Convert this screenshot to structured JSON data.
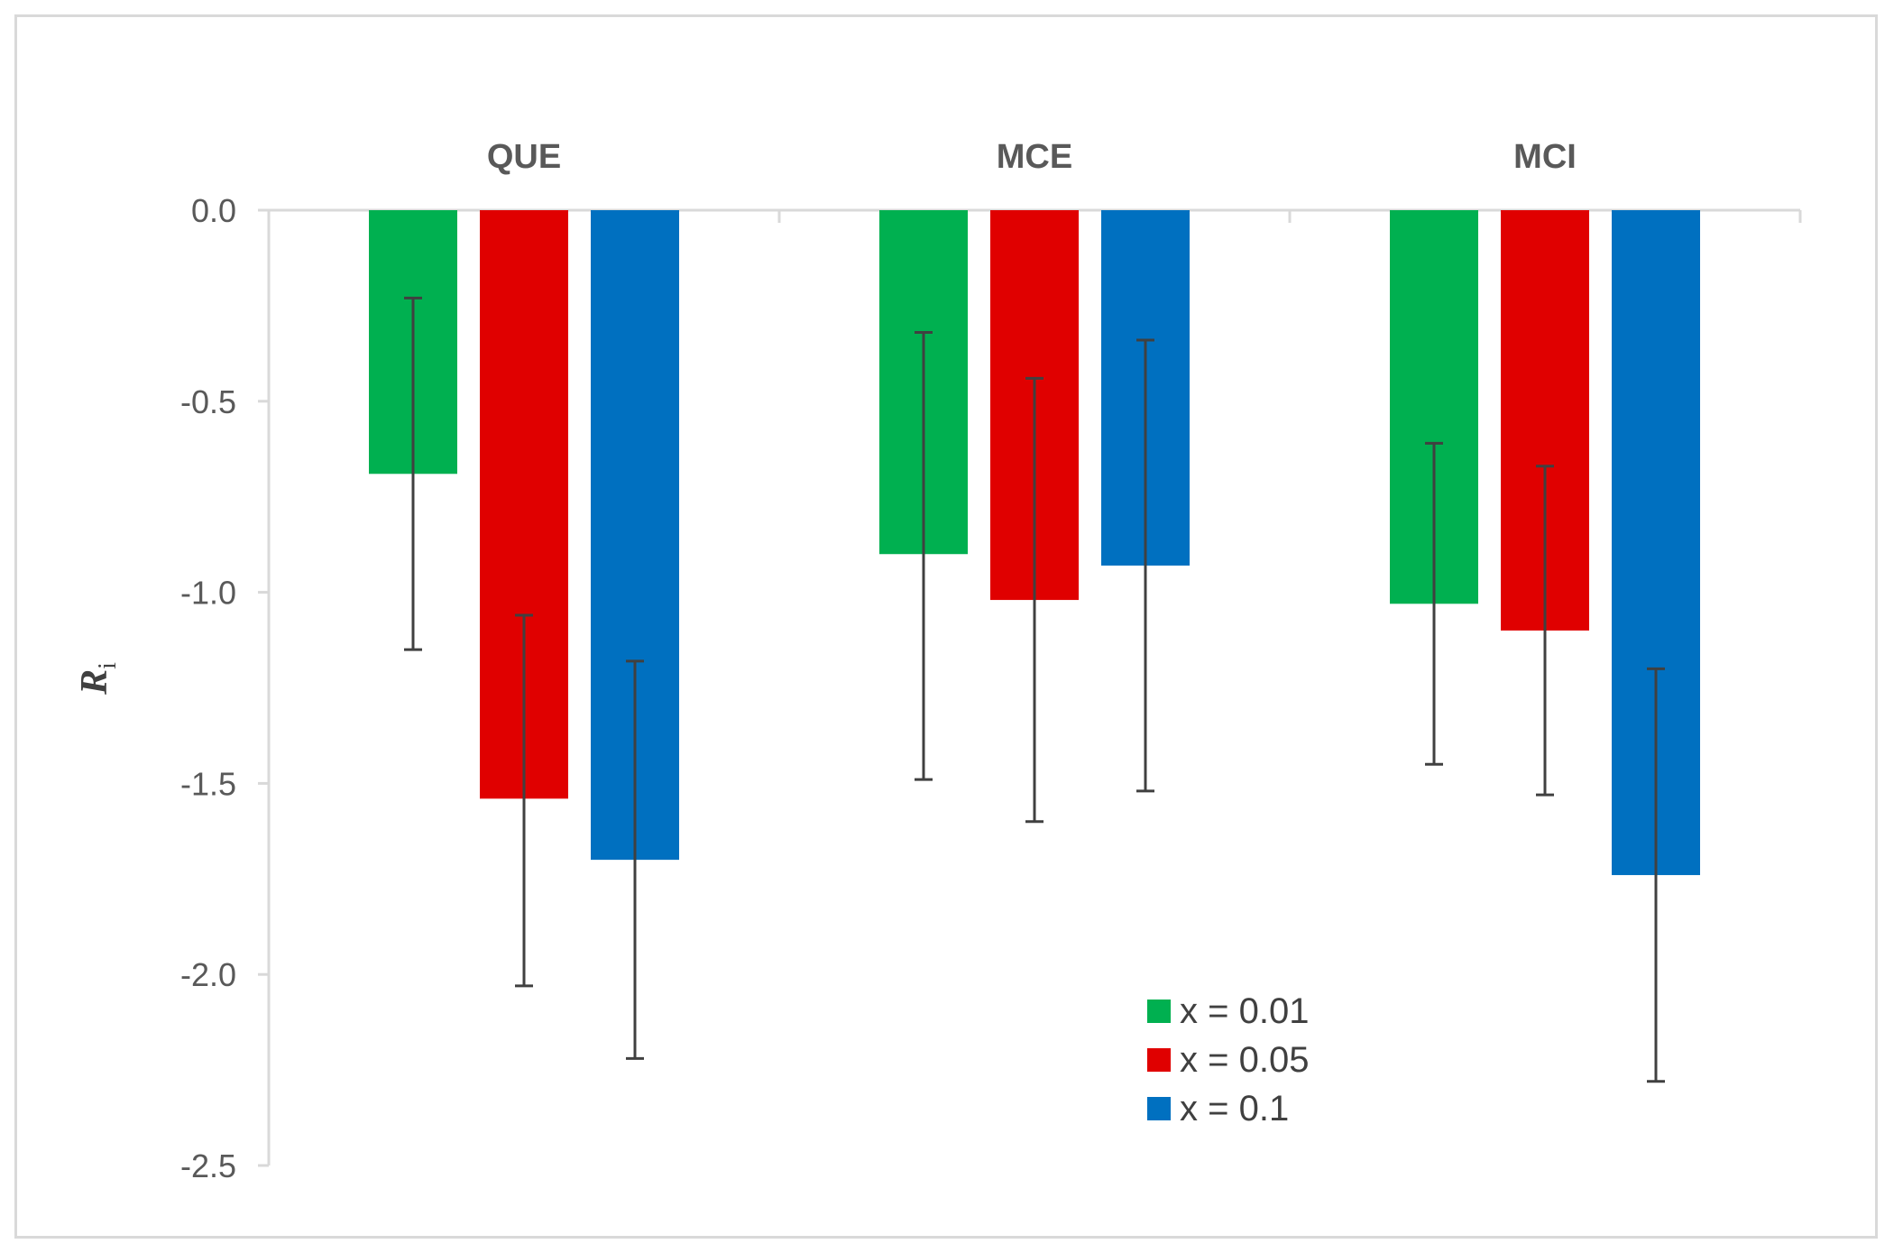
{
  "chart_data": {
    "type": "bar",
    "categories": [
      "QUE",
      "MCE",
      "MCI"
    ],
    "series": [
      {
        "name": "x = 0.01",
        "color": "#00b050",
        "values": [
          -0.69,
          -0.9,
          -1.03
        ],
        "error_low": [
          -1.15,
          -1.49,
          -1.45
        ],
        "error_high": [
          -0.23,
          -0.32,
          -0.61
        ]
      },
      {
        "name": "x = 0.05",
        "color": "#e00000",
        "values": [
          -1.54,
          -1.02,
          -1.1
        ],
        "error_low": [
          -2.03,
          -1.6,
          -1.53
        ],
        "error_high": [
          -1.06,
          -0.44,
          -0.67
        ]
      },
      {
        "name": "x = 0.1",
        "color": "#0070c0",
        "values": [
          -1.7,
          -0.93,
          -1.74
        ],
        "error_low": [
          -2.22,
          -1.52,
          -2.28
        ],
        "error_high": [
          -1.18,
          -0.34,
          -1.2
        ]
      }
    ],
    "ylabel": "R",
    "ylabel_subscript": "i",
    "ylim": [
      -2.5,
      0.0
    ],
    "yticks": [
      "0.0",
      "-0.5",
      "-1.0",
      "-1.5",
      "-2.0",
      "-2.5"
    ],
    "ytick_values": [
      0.0,
      -0.5,
      -1.0,
      -1.5,
      -2.0,
      -2.5
    ],
    "category_labels_position": "top",
    "legend_position": "bottom-center",
    "grid": false,
    "error_bar_color": "#404040"
  }
}
